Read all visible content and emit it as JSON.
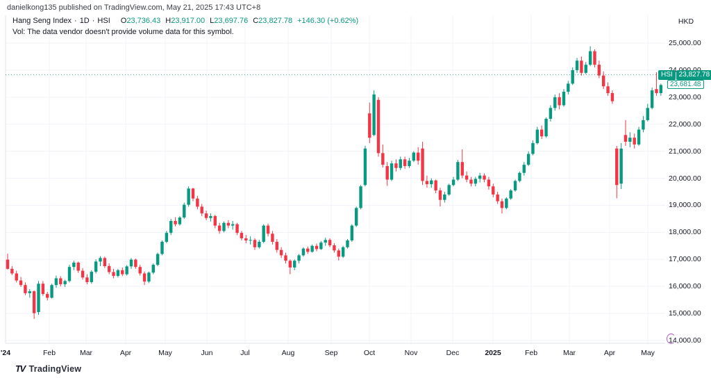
{
  "attribution": "danielkong135 published on TradingView.com, May 21, 2025 17:43 UTC+8",
  "legend": {
    "title": "Hang Seng Index",
    "separator": "·",
    "interval": "1D",
    "symbol": "HSI",
    "ohlc": {
      "o_label": "O",
      "o": "23,736.43",
      "h_label": "H",
      "h": "23,917.00",
      "l_label": "L",
      "l": "23,697.76",
      "c_label": "C",
      "c": "23,827.78",
      "change": "+146.30 (+0.62%)"
    },
    "vol_note": "Vol: The data vendor doesn't provide volume data for this symbol."
  },
  "price_axis": {
    "currency": "HKD",
    "ticks": [
      {
        "label": "25,000.00",
        "value": 25000
      },
      {
        "label": "24,000.00",
        "value": 24000
      },
      {
        "label": "23,000.00",
        "value": 23000
      },
      {
        "label": "22,000.00",
        "value": 22000
      },
      {
        "label": "21,000.00",
        "value": 21000
      },
      {
        "label": "20,000.00",
        "value": 20000
      },
      {
        "label": "19,000.00",
        "value": 19000
      },
      {
        "label": "18,000.00",
        "value": 18000
      },
      {
        "label": "17,000.00",
        "value": 17000
      },
      {
        "label": "16,000.00",
        "value": 16000
      },
      {
        "label": "15,000.00",
        "value": 15000
      },
      {
        "label": "14,000.00",
        "value": 14000
      }
    ],
    "last_price_label": {
      "symbol": "HSI",
      "price": "23,827.78",
      "value": 23827.78
    },
    "prev_close_label": {
      "price": "23,681.48",
      "value": 23681.48
    }
  },
  "time_axis": {
    "labels": [
      {
        "label": "'24",
        "x": 8,
        "year": true
      },
      {
        "label": "Feb",
        "x": 71,
        "year": false
      },
      {
        "label": "Mar",
        "x": 124,
        "year": false
      },
      {
        "label": "Apr",
        "x": 181,
        "year": false
      },
      {
        "label": "May",
        "x": 238,
        "year": false
      },
      {
        "label": "Jun",
        "x": 298,
        "year": false
      },
      {
        "label": "Jul",
        "x": 353,
        "year": false
      },
      {
        "label": "Aug",
        "x": 415,
        "year": false
      },
      {
        "label": "Sep",
        "x": 477,
        "year": false
      },
      {
        "label": "Oct",
        "x": 532,
        "year": false
      },
      {
        "label": "Nov",
        "x": 592,
        "year": false
      },
      {
        "label": "Dec",
        "x": 652,
        "year": false
      },
      {
        "label": "2025",
        "x": 710,
        "year": true
      },
      {
        "label": "Feb",
        "x": 765,
        "year": false
      },
      {
        "label": "Mar",
        "x": 820,
        "year": false
      },
      {
        "label": "Apr",
        "x": 878,
        "year": false
      },
      {
        "label": "May",
        "x": 933,
        "year": false
      }
    ]
  },
  "footer": {
    "brand": "TradingView",
    "logo": "TV"
  },
  "colors": {
    "up": "#089981",
    "down": "#F23645",
    "grid": "#f0f3fa",
    "pane_border": "#e0e3eb",
    "text": "#131722",
    "last_price_line": "#089981",
    "spinner": "#A437B8"
  },
  "chart_data": {
    "type": "candlestick",
    "title": "Hang Seng Index",
    "symbol": "HSI",
    "timeframe": "1D",
    "currency": "HKD",
    "x_start": "Jan 2024",
    "x_end": "May 21, 2025",
    "ylim": [
      14000,
      25950
    ],
    "axis_tick_step": 1000,
    "grid": true,
    "last_price": 23827.78,
    "prev_close": 23681.48,
    "last_candle_ohlc": {
      "open": 23736.43,
      "high": 23917.0,
      "low": 23697.76,
      "close": 23827.78,
      "change": 146.3,
      "change_pct": 0.62
    },
    "candles_note": "approximated daily series Jan-2024 to May-2025, [open,high,low,close]",
    "candles": [
      [
        16990,
        17210,
        16620,
        16650
      ],
      [
        16650,
        16750,
        16420,
        16480
      ],
      [
        16480,
        16580,
        16150,
        16220
      ],
      [
        16220,
        16350,
        15980,
        16050
      ],
      [
        16050,
        16150,
        15680,
        15750
      ],
      [
        15750,
        15900,
        15580,
        15820
      ],
      [
        15820,
        15850,
        14800,
        15010
      ],
      [
        15050,
        16200,
        14950,
        16100
      ],
      [
        16100,
        16200,
        15650,
        15720
      ],
      [
        15720,
        15800,
        15480,
        15580
      ],
      [
        15580,
        16100,
        15550,
        16050
      ],
      [
        16050,
        16400,
        15950,
        16300
      ],
      [
        16300,
        16380,
        16000,
        16080
      ],
      [
        16080,
        16250,
        15980,
        16200
      ],
      [
        16200,
        16800,
        16150,
        16720
      ],
      [
        16720,
        16950,
        16600,
        16880
      ],
      [
        16880,
        16920,
        16500,
        16580
      ],
      [
        16580,
        16680,
        16250,
        16330
      ],
      [
        16330,
        16450,
        16080,
        16160
      ],
      [
        16160,
        16600,
        16100,
        16540
      ],
      [
        16540,
        17000,
        16480,
        16920
      ],
      [
        16920,
        17120,
        16750,
        17050
      ],
      [
        17050,
        17100,
        16680,
        16750
      ],
      [
        16750,
        16850,
        16450,
        16530
      ],
      [
        16530,
        16650,
        16300,
        16390
      ],
      [
        16390,
        16650,
        16330,
        16600
      ],
      [
        16600,
        16700,
        16380,
        16450
      ],
      [
        16450,
        16790,
        16400,
        16740
      ],
      [
        16740,
        17050,
        16650,
        16990
      ],
      [
        16990,
        17030,
        16650,
        16720
      ],
      [
        16720,
        16800,
        16400,
        16480
      ],
      [
        16480,
        16550,
        16050,
        16180
      ],
      [
        16180,
        16550,
        16120,
        16510
      ],
      [
        16510,
        16850,
        16450,
        16800
      ],
      [
        16800,
        17250,
        16750,
        17200
      ],
      [
        17200,
        17700,
        17150,
        17650
      ],
      [
        17650,
        18050,
        17600,
        17980
      ],
      [
        17980,
        18500,
        17900,
        18420
      ],
      [
        18420,
        18560,
        18220,
        18300
      ],
      [
        18300,
        18600,
        18250,
        18550
      ],
      [
        18550,
        19100,
        18500,
        19020
      ],
      [
        19020,
        19700,
        18950,
        19620
      ],
      [
        19620,
        19650,
        19150,
        19250
      ],
      [
        19250,
        19350,
        18850,
        18950
      ],
      [
        18950,
        19050,
        18600,
        18700
      ],
      [
        18700,
        18800,
        18450,
        18530
      ],
      [
        18530,
        18700,
        18400,
        18600
      ],
      [
        18600,
        18650,
        18150,
        18250
      ],
      [
        18250,
        18350,
        17950,
        18050
      ],
      [
        18050,
        18400,
        18000,
        18350
      ],
      [
        18350,
        18450,
        18150,
        18250
      ],
      [
        18250,
        18420,
        18100,
        18300
      ],
      [
        18300,
        18350,
        17900,
        17980
      ],
      [
        17980,
        18050,
        17700,
        17780
      ],
      [
        17780,
        17900,
        17600,
        17700
      ],
      [
        17700,
        17850,
        17550,
        17720
      ],
      [
        17720,
        17780,
        17350,
        17450
      ],
      [
        17450,
        17720,
        17400,
        17650
      ],
      [
        17650,
        18300,
        17600,
        18250
      ],
      [
        18250,
        18320,
        17850,
        17950
      ],
      [
        17950,
        18050,
        17550,
        17650
      ],
      [
        17650,
        17750,
        17250,
        17350
      ],
      [
        17350,
        17450,
        17050,
        17150
      ],
      [
        17150,
        17250,
        16850,
        16950
      ],
      [
        16950,
        17000,
        16450,
        16700
      ],
      [
        16700,
        17000,
        16600,
        16950
      ],
      [
        16950,
        17200,
        16850,
        17150
      ],
      [
        17150,
        17450,
        17100,
        17400
      ],
      [
        17400,
        17480,
        17200,
        17280
      ],
      [
        17280,
        17550,
        17250,
        17500
      ],
      [
        17500,
        17580,
        17300,
        17380
      ],
      [
        17380,
        17680,
        17350,
        17620
      ],
      [
        17620,
        17800,
        17500,
        17720
      ],
      [
        17720,
        17780,
        17450,
        17520
      ],
      [
        17520,
        17600,
        17250,
        17330
      ],
      [
        17330,
        17400,
        16960,
        17100
      ],
      [
        17100,
        17500,
        17050,
        17450
      ],
      [
        17450,
        17750,
        17400,
        17700
      ],
      [
        17700,
        18300,
        17650,
        18250
      ],
      [
        18250,
        18950,
        18200,
        18900
      ],
      [
        18900,
        19750,
        18850,
        19700
      ],
      [
        19750,
        21200,
        19700,
        21100
      ],
      [
        22400,
        22800,
        21300,
        21500
      ],
      [
        21600,
        23250,
        21550,
        23100
      ],
      [
        22900,
        23000,
        20800,
        20930
      ],
      [
        20930,
        21250,
        20400,
        20500
      ],
      [
        20450,
        20600,
        19720,
        19950
      ],
      [
        19950,
        20650,
        19900,
        20550
      ],
      [
        20550,
        20700,
        20250,
        20380
      ],
      [
        20380,
        20800,
        20300,
        20700
      ],
      [
        20700,
        20800,
        20350,
        20450
      ],
      [
        20450,
        20750,
        20380,
        20650
      ],
      [
        20650,
        21000,
        20600,
        20950
      ],
      [
        20950,
        21150,
        20500,
        20650
      ],
      [
        21100,
        21350,
        19750,
        19900
      ],
      [
        19900,
        20100,
        19650,
        19780
      ],
      [
        19780,
        20000,
        19650,
        19920
      ],
      [
        19920,
        19950,
        19450,
        19550
      ],
      [
        19550,
        19650,
        18960,
        19200
      ],
      [
        19200,
        19500,
        19100,
        19400
      ],
      [
        19400,
        19800,
        19350,
        19750
      ],
      [
        19750,
        20050,
        19700,
        19950
      ],
      [
        19950,
        20680,
        19900,
        20600
      ],
      [
        20600,
        21070,
        20000,
        20100
      ],
      [
        20100,
        20250,
        19850,
        19950
      ],
      [
        19950,
        20050,
        19700,
        19800
      ],
      [
        19800,
        20050,
        19700,
        19980
      ],
      [
        19980,
        20200,
        19850,
        20100
      ],
      [
        20100,
        20180,
        19850,
        19950
      ],
      [
        19950,
        20050,
        19580,
        19700
      ],
      [
        19700,
        19800,
        19300,
        19400
      ],
      [
        19400,
        19500,
        19050,
        19150
      ],
      [
        19150,
        19250,
        18700,
        18900
      ],
      [
        18900,
        19300,
        18850,
        19250
      ],
      [
        19250,
        19600,
        19200,
        19550
      ],
      [
        19550,
        19950,
        19500,
        19900
      ],
      [
        19900,
        20250,
        19850,
        20200
      ],
      [
        20200,
        20600,
        20100,
        20500
      ],
      [
        20500,
        21000,
        20450,
        20900
      ],
      [
        20900,
        21400,
        20850,
        21300
      ],
      [
        21300,
        21900,
        21250,
        21800
      ],
      [
        21800,
        21950,
        21450,
        21550
      ],
      [
        21550,
        22250,
        21500,
        22200
      ],
      [
        22200,
        22700,
        22100,
        22600
      ],
      [
        22600,
        23100,
        22500,
        23000
      ],
      [
        23000,
        23150,
        22550,
        22700
      ],
      [
        22700,
        23300,
        22650,
        23200
      ],
      [
        23200,
        23600,
        23100,
        23500
      ],
      [
        23500,
        24100,
        23450,
        24000
      ],
      [
        24000,
        24450,
        23900,
        24350
      ],
      [
        24350,
        24500,
        23800,
        23900
      ],
      [
        23900,
        24300,
        23850,
        24200
      ],
      [
        24200,
        24880,
        24150,
        24700
      ],
      [
        24700,
        24770,
        24100,
        24200
      ],
      [
        24200,
        24350,
        23700,
        23800
      ],
      [
        23800,
        23950,
        23300,
        23400
      ],
      [
        23400,
        23550,
        23050,
        23150
      ],
      [
        23150,
        23250,
        22750,
        22850
      ],
      [
        21100,
        21200,
        19260,
        19750
      ],
      [
        19800,
        21300,
        19600,
        21100
      ],
      [
        21600,
        22150,
        21200,
        21350
      ],
      [
        21350,
        21700,
        21150,
        21500
      ],
      [
        21500,
        21650,
        21100,
        21250
      ],
      [
        21250,
        21900,
        21200,
        21800
      ],
      [
        21800,
        22300,
        21700,
        22150
      ],
      [
        22150,
        22750,
        22100,
        22600
      ],
      [
        22600,
        23350,
        22550,
        23250
      ],
      [
        23300,
        23920,
        23050,
        23150
      ],
      [
        23150,
        23500,
        23050,
        23450
      ],
      [
        23736,
        23917,
        23698,
        23828
      ]
    ]
  }
}
